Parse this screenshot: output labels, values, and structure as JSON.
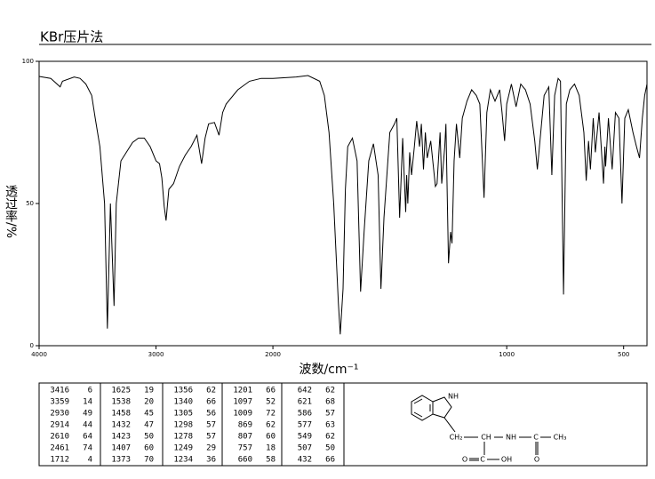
{
  "chart_data": {
    "type": "line",
    "title": "KBr压片法",
    "xlabel": "波数/cm⁻¹",
    "ylabel": "透过率/%",
    "xlim": [
      4000,
      400
    ],
    "ylim": [
      0,
      100
    ],
    "x_scale_change": {
      "at": 2000,
      "ratio": 2
    },
    "xticks": [
      4000,
      3000,
      2000,
      1000,
      500
    ],
    "yticks": [
      0,
      50,
      100
    ],
    "color": "#000000",
    "x": [
      4000,
      3900,
      3820,
      3800,
      3700,
      3650,
      3600,
      3550,
      3520,
      3480,
      3440,
      3416,
      3390,
      3359,
      3340,
      3300,
      3200,
      3150,
      3100,
      3050,
      3000,
      2970,
      2950,
      2930,
      2914,
      2890,
      2850,
      2800,
      2750,
      2700,
      2650,
      2610,
      2580,
      2550,
      2500,
      2461,
      2430,
      2400,
      2300,
      2200,
      2100,
      2000,
      1900,
      1850,
      1800,
      1780,
      1760,
      1740,
      1720,
      1712,
      1700,
      1690,
      1680,
      1660,
      1640,
      1625,
      1610,
      1590,
      1570,
      1550,
      1538,
      1525,
      1500,
      1480,
      1470,
      1458,
      1445,
      1432,
      1428,
      1423,
      1415,
      1407,
      1395,
      1385,
      1373,
      1365,
      1356,
      1348,
      1340,
      1325,
      1305,
      1298,
      1290,
      1285,
      1278,
      1265,
      1260,
      1249,
      1240,
      1234,
      1225,
      1215,
      1201,
      1190,
      1170,
      1150,
      1130,
      1115,
      1097,
      1085,
      1070,
      1050,
      1030,
      1020,
      1009,
      1000,
      980,
      960,
      940,
      920,
      900,
      880,
      869,
      860,
      840,
      820,
      807,
      795,
      780,
      770,
      757,
      745,
      730,
      710,
      690,
      670,
      660,
      650,
      642,
      630,
      621,
      605,
      586,
      580,
      577,
      565,
      549,
      535,
      520,
      507,
      495,
      480,
      460,
      445,
      432,
      420,
      410,
      400
    ],
    "values": [
      94.7,
      94,
      91,
      93,
      94.5,
      94,
      92,
      88,
      80,
      70,
      50,
      6,
      50,
      14,
      50,
      65,
      71.5,
      73,
      73,
      70,
      65,
      64,
      59,
      49,
      44,
      55,
      57,
      63,
      67,
      70,
      74,
      64,
      73,
      78,
      78.5,
      74,
      82,
      85,
      90,
      93,
      94,
      94,
      94.5,
      95,
      93,
      88,
      75,
      50,
      15,
      4,
      20,
      55,
      70,
      73,
      65,
      19,
      40,
      65,
      71,
      60,
      20,
      45,
      75,
      78,
      80,
      45,
      73,
      47,
      60,
      50,
      68,
      60,
      70,
      79,
      70,
      78,
      62,
      75,
      66,
      72,
      56,
      57,
      68,
      75,
      57,
      70,
      78,
      29,
      40,
      36,
      65,
      78,
      66,
      80,
      86,
      90,
      88,
      85,
      52,
      82,
      90,
      86,
      90,
      82,
      72,
      85,
      92,
      84,
      92,
      90,
      85,
      72,
      62,
      70,
      88,
      91,
      60,
      88,
      94,
      93,
      18,
      85,
      90,
      92,
      88,
      75,
      58,
      72,
      62,
      80,
      68,
      82,
      57,
      70,
      63,
      80,
      62,
      82,
      80,
      50,
      80,
      83,
      75,
      70,
      66,
      80,
      88,
      92
    ]
  },
  "peak_table": [
    [
      [
        3416,
        6
      ],
      [
        3359,
        14
      ],
      [
        2930,
        49
      ],
      [
        2914,
        44
      ],
      [
        2610,
        64
      ],
      [
        2461,
        74
      ],
      [
        1712,
        4
      ]
    ],
    [
      [
        1625,
        19
      ],
      [
        1538,
        20
      ],
      [
        1458,
        45
      ],
      [
        1432,
        47
      ],
      [
        1423,
        50
      ],
      [
        1407,
        60
      ],
      [
        1373,
        70
      ]
    ],
    [
      [
        1356,
        62
      ],
      [
        1340,
        66
      ],
      [
        1305,
        56
      ],
      [
        1298,
        57
      ],
      [
        1278,
        57
      ],
      [
        1249,
        29
      ],
      [
        1234,
        36
      ]
    ],
    [
      [
        1201,
        66
      ],
      [
        1097,
        52
      ],
      [
        1009,
        72
      ],
      [
        869,
        62
      ],
      [
        807,
        60
      ],
      [
        757,
        18
      ],
      [
        660,
        58
      ]
    ],
    [
      [
        642,
        62
      ],
      [
        621,
        68
      ],
      [
        586,
        57
      ],
      [
        577,
        63
      ],
      [
        549,
        62
      ],
      [
        507,
        50
      ],
      [
        432,
        66
      ]
    ]
  ],
  "structure": {
    "labels": [
      "NH",
      "CH₂",
      "CH",
      "NH",
      "C",
      "CH₃",
      "O",
      "C",
      "OH",
      "O"
    ]
  }
}
